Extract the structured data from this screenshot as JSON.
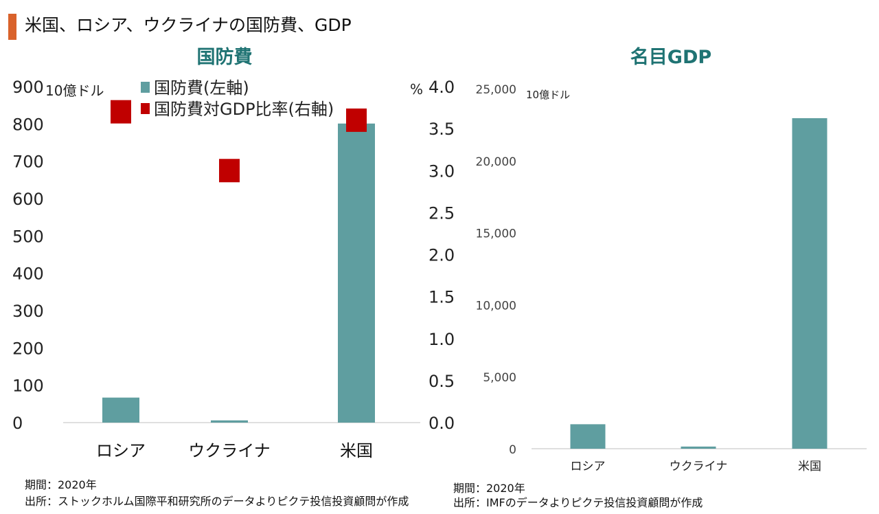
{
  "slide_title": "米国、ロシア、ウクライナの国防費、GDP",
  "colors": {
    "accent": "#D9622B",
    "bar": "#5F9EA0",
    "marker": "#C00000",
    "heading": "#1F7373",
    "axis": "#BFBFBF"
  },
  "chart_data": [
    {
      "type": "bar",
      "title": "国防費",
      "categories": [
        "ロシア",
        "ウクライナ",
        "米国"
      ],
      "series": [
        {
          "name": "国防費(左軸)",
          "axis": "left",
          "kind": "bar",
          "values": [
            67,
            6,
            801
          ]
        },
        {
          "name": "国防費対GDP比率(右軸)",
          "axis": "right",
          "kind": "marker",
          "values": [
            3.7,
            3.0,
            3.6
          ]
        }
      ],
      "y_left": {
        "unit": "10億ドル",
        "ylim": [
          0,
          900
        ],
        "ticks": [
          "0",
          "100",
          "200",
          "300",
          "400",
          "500",
          "600",
          "700",
          "800",
          "900"
        ]
      },
      "y_right": {
        "unit": "%",
        "ylim": [
          0,
          4.0
        ],
        "ticks": [
          "0.0",
          "0.5",
          "1.0",
          "1.5",
          "2.0",
          "2.5",
          "3.0",
          "3.5",
          "4.0"
        ]
      },
      "legend_position": "top-left",
      "grid": false
    },
    {
      "type": "bar",
      "title": "名目GDP",
      "categories": [
        "ロシア",
        "ウクライナ",
        "米国"
      ],
      "series": [
        {
          "values": [
            1700,
            150,
            22950
          ]
        }
      ],
      "y": {
        "unit": "10億ドル",
        "ylim": [
          0,
          25000
        ],
        "ticks": [
          "0",
          "5,000",
          "10,000",
          "15,000",
          "20,000",
          "25,000"
        ]
      },
      "grid": false
    }
  ],
  "notes_left": {
    "period": "期間：2020年",
    "source": "出所：ストックホルム国際平和研究所のデータよりピクテ投信投資顧問が作成"
  },
  "notes_right": {
    "period": "期間：2020年",
    "source": "出所：IMFのデータよりピクテ投信投資顧問が作成"
  }
}
